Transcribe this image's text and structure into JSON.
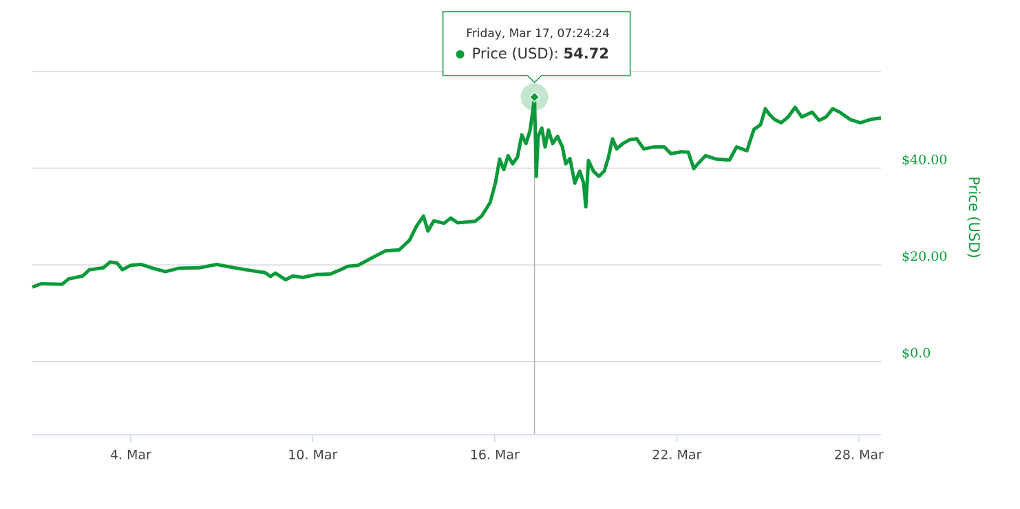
{
  "chart_data": {
    "type": "line",
    "y_label": "Price (USD)",
    "series": [
      {
        "name": "Price (USD)",
        "color": "#0a9a3a",
        "x": [
          0.76,
          1.05,
          1.74,
          1.96,
          2.42,
          2.64,
          3.1,
          3.32,
          3.55,
          3.73,
          4.0,
          4.34,
          4.68,
          5.14,
          5.59,
          6.27,
          6.84,
          7.41,
          8.09,
          8.43,
          8.61,
          8.77,
          9.11,
          9.34,
          9.68,
          10.13,
          10.58,
          10.92,
          11.15,
          11.49,
          11.94,
          12.4,
          12.85,
          13.19,
          13.42,
          13.65,
          13.8,
          13.99,
          14.33,
          14.55,
          14.78,
          15.35,
          15.57,
          15.85,
          16.03,
          16.16,
          16.3,
          16.44,
          16.59,
          16.75,
          16.89,
          17.03,
          17.16,
          17.25,
          17.31,
          17.37,
          17.43,
          17.55,
          17.66,
          17.77,
          17.91,
          18.07,
          18.23,
          18.34,
          18.48,
          18.64,
          18.8,
          18.93,
          19.0,
          19.09,
          19.25,
          19.43,
          19.61,
          19.75,
          19.88,
          20.02,
          20.22,
          20.45,
          20.68,
          20.91,
          21.25,
          21.59,
          21.81,
          22.15,
          22.38,
          22.56,
          22.72,
          22.95,
          23.29,
          23.74,
          23.97,
          24.31,
          24.54,
          24.76,
          24.92,
          25.06,
          25.22,
          25.44,
          25.67,
          25.9,
          26.12,
          26.46,
          26.69,
          26.92,
          27.14,
          27.37,
          27.71,
          28.05,
          28.39,
          28.73
        ],
        "values": [
          15.4,
          16.1,
          16.0,
          17.1,
          17.7,
          19.0,
          19.4,
          20.6,
          20.4,
          19.0,
          19.9,
          20.1,
          19.4,
          18.6,
          19.3,
          19.4,
          20.1,
          19.4,
          18.7,
          18.4,
          17.6,
          18.3,
          16.9,
          17.7,
          17.4,
          18.0,
          18.1,
          19.0,
          19.7,
          19.9,
          21.4,
          22.9,
          23.1,
          25.1,
          28.0,
          30.1,
          27.0,
          29.1,
          28.6,
          29.7,
          28.7,
          29.0,
          30.1,
          32.9,
          37.1,
          41.9,
          39.7,
          42.6,
          40.9,
          42.3,
          46.9,
          45.1,
          47.7,
          51.6,
          54.72,
          38.3,
          46.6,
          48.3,
          44.4,
          47.9,
          45.1,
          46.6,
          44.4,
          40.9,
          42.0,
          36.9,
          39.4,
          36.9,
          32.0,
          41.6,
          39.4,
          38.3,
          39.4,
          42.3,
          46.1,
          44.0,
          45.1,
          45.9,
          46.1,
          44.0,
          44.4,
          44.4,
          43.0,
          43.4,
          43.3,
          39.9,
          41.1,
          42.6,
          41.9,
          41.7,
          44.4,
          43.6,
          48.0,
          49.0,
          52.3,
          51.1,
          50.1,
          49.4,
          50.6,
          52.6,
          50.6,
          51.6,
          49.9,
          50.6,
          52.3,
          51.6,
          50.1,
          49.4,
          50.1,
          50.4
        ]
      }
    ],
    "xlim": [
      0.76,
      28.73
    ],
    "xticks": [
      {
        "value": 4,
        "label": "4. Mar"
      },
      {
        "value": 10,
        "label": "10. Mar"
      },
      {
        "value": 16,
        "label": "16. Mar"
      },
      {
        "value": 22,
        "label": "22. Mar"
      },
      {
        "value": 28,
        "label": "28. Mar"
      }
    ],
    "ylim": [
      -15,
      60
    ],
    "yticks": [
      {
        "value": 0,
        "label": "$0.0"
      },
      {
        "value": 20,
        "label": "$20.00"
      },
      {
        "value": 40,
        "label": "$40.00"
      }
    ],
    "grid": true,
    "tooltip": {
      "title": "Friday, Mar 17, 07:24:24"
    }
  }
}
